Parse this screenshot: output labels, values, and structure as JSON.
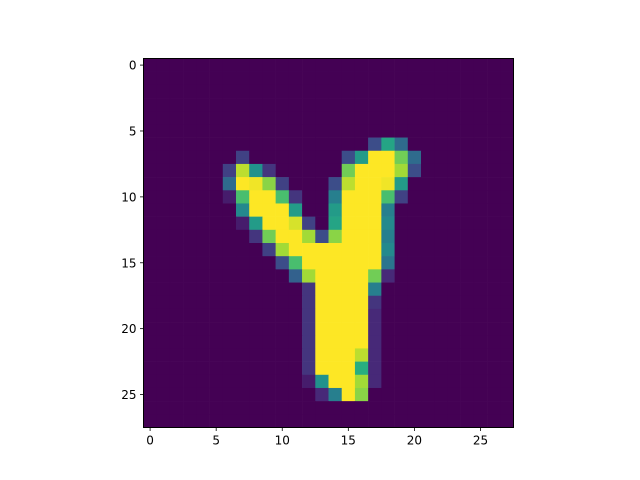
{
  "chart_data": {
    "type": "heatmap",
    "colormap": "viridis",
    "value_range": [
      0,
      255
    ],
    "rows": 28,
    "cols": 28,
    "x_ticks": [
      0,
      5,
      10,
      15,
      20,
      25
    ],
    "y_ticks": [
      0,
      5,
      10,
      15,
      20,
      25
    ],
    "x_tick_labels": [
      "0",
      "5",
      "10",
      "15",
      "20",
      "25"
    ],
    "y_tick_labels": [
      "0",
      "5",
      "10",
      "15",
      "20",
      "25"
    ],
    "xlim": [
      -0.5,
      27.5
    ],
    "ylim": [
      27.5,
      -0.5
    ],
    "grid": false,
    "title": "",
    "xlabel": "",
    "ylabel": "",
    "cells": [
      [
        6,
        17,
        60
      ],
      [
        6,
        18,
        150
      ],
      [
        6,
        19,
        90
      ],
      [
        7,
        7,
        50
      ],
      [
        7,
        15,
        60
      ],
      [
        7,
        16,
        140
      ],
      [
        7,
        17,
        255
      ],
      [
        7,
        18,
        255
      ],
      [
        7,
        19,
        200
      ],
      [
        7,
        20,
        90
      ],
      [
        8,
        6,
        50
      ],
      [
        8,
        7,
        230
      ],
      [
        8,
        8,
        130
      ],
      [
        8,
        9,
        40
      ],
      [
        8,
        15,
        200
      ],
      [
        8,
        16,
        255
      ],
      [
        8,
        17,
        255
      ],
      [
        8,
        18,
        255
      ],
      [
        8,
        19,
        220
      ],
      [
        8,
        20,
        60
      ],
      [
        9,
        6,
        90
      ],
      [
        9,
        7,
        255
      ],
      [
        9,
        8,
        250
      ],
      [
        9,
        9,
        210
      ],
      [
        9,
        10,
        50
      ],
      [
        9,
        14,
        60
      ],
      [
        9,
        15,
        230
      ],
      [
        9,
        16,
        255
      ],
      [
        9,
        17,
        255
      ],
      [
        9,
        18,
        250
      ],
      [
        9,
        19,
        140
      ],
      [
        10,
        6,
        20
      ],
      [
        10,
        7,
        180
      ],
      [
        10,
        8,
        255
      ],
      [
        10,
        9,
        255
      ],
      [
        10,
        10,
        180
      ],
      [
        10,
        11,
        40
      ],
      [
        10,
        14,
        110
      ],
      [
        10,
        15,
        255
      ],
      [
        10,
        16,
        255
      ],
      [
        10,
        17,
        255
      ],
      [
        10,
        18,
        180
      ],
      [
        10,
        19,
        50
      ],
      [
        11,
        7,
        120
      ],
      [
        11,
        8,
        255
      ],
      [
        11,
        9,
        255
      ],
      [
        11,
        10,
        255
      ],
      [
        11,
        11,
        140
      ],
      [
        11,
        14,
        140
      ],
      [
        11,
        15,
        255
      ],
      [
        11,
        16,
        255
      ],
      [
        11,
        17,
        255
      ],
      [
        11,
        18,
        110
      ],
      [
        12,
        7,
        20
      ],
      [
        12,
        8,
        140
      ],
      [
        12,
        9,
        255
      ],
      [
        12,
        10,
        255
      ],
      [
        12,
        11,
        240
      ],
      [
        12,
        12,
        50
      ],
      [
        12,
        14,
        150
      ],
      [
        12,
        15,
        255
      ],
      [
        12,
        16,
        255
      ],
      [
        12,
        17,
        255
      ],
      [
        12,
        18,
        120
      ],
      [
        13,
        8,
        40
      ],
      [
        13,
        9,
        200
      ],
      [
        13,
        10,
        255
      ],
      [
        13,
        11,
        255
      ],
      [
        13,
        12,
        220
      ],
      [
        13,
        13,
        60
      ],
      [
        13,
        14,
        210
      ],
      [
        13,
        15,
        255
      ],
      [
        13,
        16,
        255
      ],
      [
        13,
        17,
        255
      ],
      [
        13,
        18,
        110
      ],
      [
        14,
        9,
        50
      ],
      [
        14,
        10,
        220
      ],
      [
        14,
        11,
        255
      ],
      [
        14,
        12,
        255
      ],
      [
        14,
        13,
        255
      ],
      [
        14,
        14,
        255
      ],
      [
        14,
        15,
        255
      ],
      [
        14,
        16,
        255
      ],
      [
        14,
        17,
        255
      ],
      [
        14,
        18,
        120
      ],
      [
        15,
        10,
        60
      ],
      [
        15,
        11,
        180
      ],
      [
        15,
        12,
        255
      ],
      [
        15,
        13,
        255
      ],
      [
        15,
        14,
        255
      ],
      [
        15,
        15,
        255
      ],
      [
        15,
        16,
        255
      ],
      [
        15,
        17,
        255
      ],
      [
        15,
        18,
        100
      ],
      [
        16,
        11,
        80
      ],
      [
        16,
        12,
        220
      ],
      [
        16,
        13,
        255
      ],
      [
        16,
        14,
        255
      ],
      [
        16,
        15,
        255
      ],
      [
        16,
        16,
        255
      ],
      [
        16,
        17,
        200
      ],
      [
        16,
        18,
        30
      ],
      [
        17,
        12,
        40
      ],
      [
        17,
        13,
        255
      ],
      [
        17,
        14,
        255
      ],
      [
        17,
        15,
        255
      ],
      [
        17,
        16,
        255
      ],
      [
        17,
        17,
        110
      ],
      [
        18,
        12,
        40
      ],
      [
        18,
        13,
        255
      ],
      [
        18,
        14,
        255
      ],
      [
        18,
        15,
        255
      ],
      [
        18,
        16,
        255
      ],
      [
        18,
        17,
        40
      ],
      [
        19,
        12,
        40
      ],
      [
        19,
        13,
        255
      ],
      [
        19,
        14,
        255
      ],
      [
        19,
        15,
        255
      ],
      [
        19,
        16,
        255
      ],
      [
        19,
        17,
        30
      ],
      [
        20,
        12,
        40
      ],
      [
        20,
        13,
        255
      ],
      [
        20,
        14,
        255
      ],
      [
        20,
        15,
        255
      ],
      [
        20,
        16,
        255
      ],
      [
        20,
        17,
        30
      ],
      [
        21,
        12,
        40
      ],
      [
        21,
        13,
        255
      ],
      [
        21,
        14,
        255
      ],
      [
        21,
        15,
        255
      ],
      [
        21,
        16,
        255
      ],
      [
        21,
        17,
        30
      ],
      [
        22,
        12,
        40
      ],
      [
        22,
        13,
        255
      ],
      [
        22,
        14,
        255
      ],
      [
        22,
        15,
        255
      ],
      [
        22,
        16,
        230
      ],
      [
        22,
        17,
        30
      ],
      [
        23,
        12,
        40
      ],
      [
        23,
        13,
        255
      ],
      [
        23,
        14,
        255
      ],
      [
        23,
        15,
        255
      ],
      [
        23,
        16,
        160
      ],
      [
        23,
        17,
        30
      ],
      [
        24,
        12,
        20
      ],
      [
        24,
        13,
        130
      ],
      [
        24,
        14,
        255
      ],
      [
        24,
        15,
        255
      ],
      [
        24,
        16,
        220
      ],
      [
        24,
        17,
        30
      ],
      [
        25,
        13,
        30
      ],
      [
        25,
        14,
        110
      ],
      [
        25,
        15,
        255
      ],
      [
        25,
        16,
        210
      ]
    ]
  }
}
